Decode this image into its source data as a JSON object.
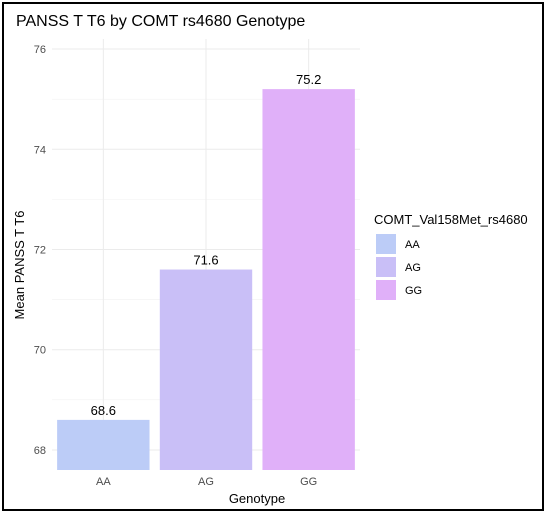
{
  "chart_data": {
    "type": "bar",
    "title": "PANSS T T6 by COMT rs4680 Genotype",
    "xlabel": "Genotype",
    "ylabel": "Mean PANSS T T6",
    "categories": [
      "AA",
      "AG",
      "GG"
    ],
    "values": [
      68.6,
      71.6,
      75.2
    ],
    "bar_labels": [
      "68.6",
      "71.6",
      "75.2"
    ],
    "colors": [
      "#bcccf7",
      "#c9bff7",
      "#e0b0f9"
    ],
    "ylim": [
      67.6,
      76.2
    ],
    "yticks": [
      68,
      70,
      72,
      74,
      76
    ],
    "grid": true,
    "legend": {
      "title": "COMT_Val158Met_rs4680",
      "placement": "right",
      "entries": [
        "AA",
        "AG",
        "GG"
      ]
    }
  }
}
